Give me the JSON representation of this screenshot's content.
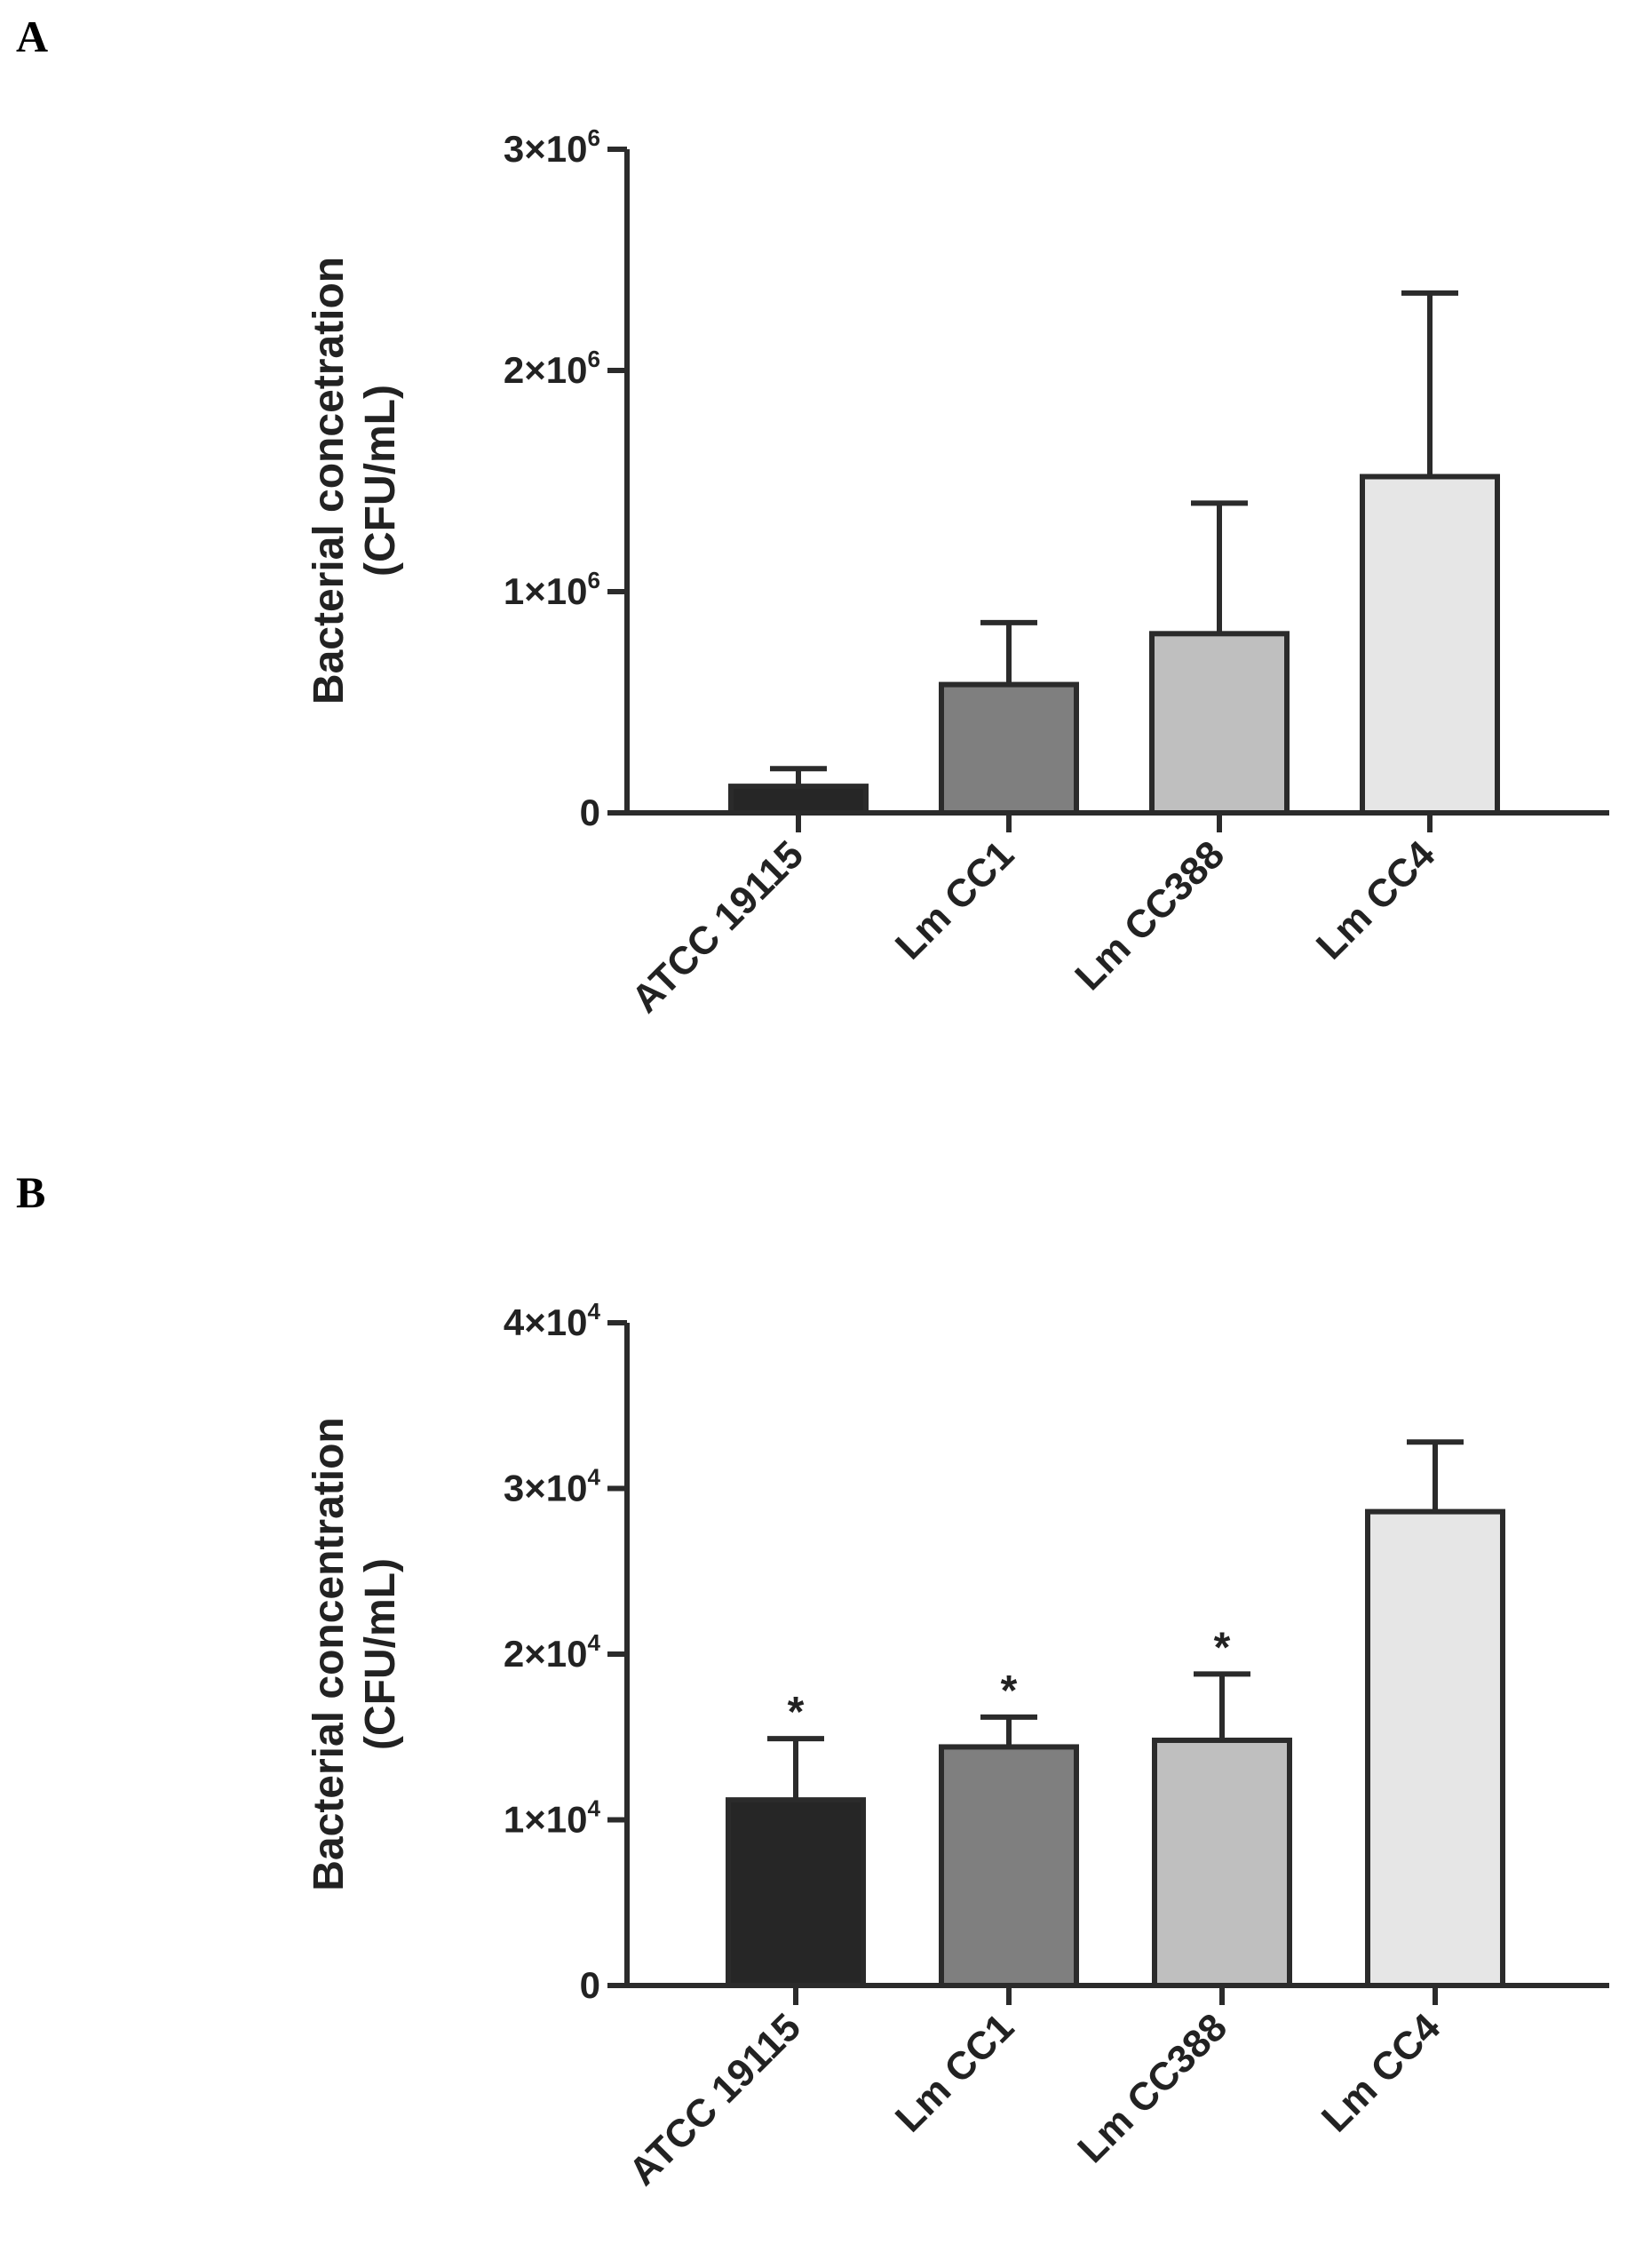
{
  "panels": [
    {
      "label": "A"
    },
    {
      "label": "B"
    }
  ],
  "chart_data": [
    {
      "type": "bar",
      "panel": "A",
      "title": "",
      "xlabel": "",
      "ylabel_line1": "Bacterial concetration",
      "ylabel_line2": "(CFU/mL)",
      "categories": [
        "ATCC 19115",
        "Lm CC1",
        "Lm CC388",
        "Lm CC4"
      ],
      "values": [
        120000,
        580000,
        810000,
        1520000
      ],
      "errors": [
        80000,
        280000,
        590000,
        830000
      ],
      "significance": [
        "",
        "",
        "",
        ""
      ],
      "bar_colors": [
        "#262626",
        "#7f7f7f",
        "#bfbfbf",
        "#e6e6e6"
      ],
      "ylim": [
        0,
        3000000
      ],
      "yticks": [
        {
          "value": 0,
          "base": "0",
          "exp": ""
        },
        {
          "value": 1000000,
          "base": "1×10",
          "exp": "6"
        },
        {
          "value": 2000000,
          "base": "2×10",
          "exp": "6"
        },
        {
          "value": 3000000,
          "base": "3×10",
          "exp": "6"
        }
      ],
      "grid": false,
      "legend": "none"
    },
    {
      "type": "bar",
      "panel": "B",
      "title": "",
      "xlabel": "",
      "ylabel_line1": "Bacterial concentration",
      "ylabel_line2": "(CFU/mL)",
      "categories": [
        "ATCC 19115",
        "Lm CC1",
        "Lm CC388",
        "Lm CC4"
      ],
      "values": [
        11200,
        14400,
        14800,
        28600
      ],
      "errors": [
        3700,
        1800,
        4000,
        4200
      ],
      "significance": [
        "*",
        "*",
        "*",
        ""
      ],
      "bar_colors": [
        "#262626",
        "#7f7f7f",
        "#bfbfbf",
        "#e6e6e6"
      ],
      "ylim": [
        0,
        40000
      ],
      "yticks": [
        {
          "value": 0,
          "base": "0",
          "exp": ""
        },
        {
          "value": 10000,
          "base": "1×10",
          "exp": "4"
        },
        {
          "value": 20000,
          "base": "2×10",
          "exp": "4"
        },
        {
          "value": 30000,
          "base": "3×10",
          "exp": "4"
        },
        {
          "value": 40000,
          "base": "4×10",
          "exp": "4"
        }
      ],
      "grid": false,
      "legend": "none"
    }
  ]
}
